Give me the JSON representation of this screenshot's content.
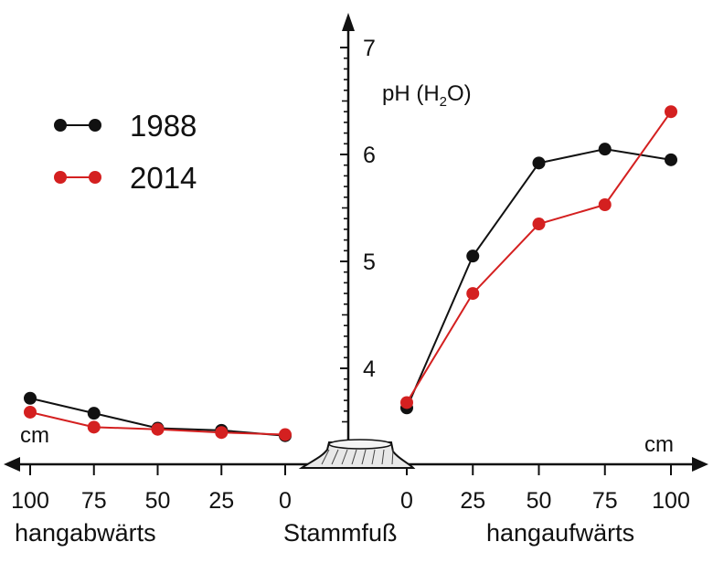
{
  "chart_data": {
    "type": "line",
    "ylabel": "pH (H",
    "ylabel_sub": "2",
    "ylabel_end": "O)",
    "ylim": [
      3.4,
      7.1
    ],
    "y_ticks": [
      "4",
      "5",
      "6",
      "7"
    ],
    "x_unit": "cm",
    "center_label": "Stammfuß",
    "left": {
      "label": "hangabwärts",
      "ticks": [
        "100",
        "75",
        "50",
        "25",
        "0"
      ],
      "x": [
        100,
        75,
        50,
        25,
        0
      ]
    },
    "right": {
      "label": "hangaufwärts",
      "ticks": [
        "0",
        "25",
        "50",
        "75",
        "100"
      ],
      "x": [
        0,
        25,
        50,
        75,
        100
      ]
    },
    "series": [
      {
        "name": "1988",
        "color": "#111111",
        "left_values": [
          3.72,
          3.58,
          3.44,
          3.42,
          3.37
        ],
        "right_values": [
          3.63,
          5.05,
          5.92,
          6.05,
          5.95
        ]
      },
      {
        "name": "2014",
        "color": "#d42020",
        "left_values": [
          3.59,
          3.45,
          3.43,
          3.4,
          3.38
        ],
        "right_values": [
          3.68,
          4.7,
          5.35,
          5.53,
          6.4
        ]
      }
    ],
    "legend": "top-left",
    "grid": false
  }
}
